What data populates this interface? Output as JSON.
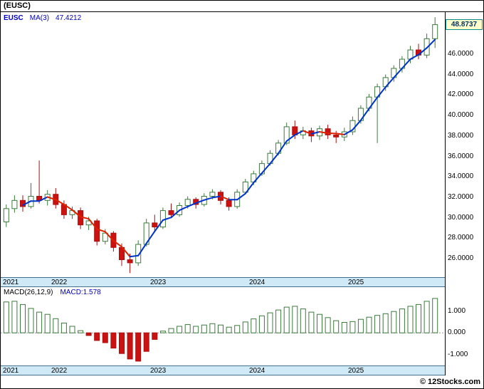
{
  "window": {
    "title": "(EUSC)"
  },
  "watermark": "© 12Stocks.com",
  "colors": {
    "up_fill": "#ffffff",
    "up_border": "#3d7a3d",
    "down_fill": "#cc1111",
    "down_border": "#aa0f0f",
    "ma_up": "#0033cc",
    "ma_down": "#dd2200",
    "strip_bg": "#cfe9f7",
    "strip_border": "#44708c",
    "last_price_bg": "#ffffcc",
    "last_price_border": "#0c8c8c",
    "last_price_text": "#003366",
    "legend_text": "#0000c8"
  },
  "main_chart": {
    "legend": {
      "symbol": "EUSC",
      "ma_label": "MA(3)",
      "ma_value": "47.4212"
    },
    "last_price": "48.8737",
    "y_ticks": [
      "46.0000",
      "44.0000",
      "42.0000",
      "40.0000",
      "38.0000",
      "36.0000",
      "34.0000",
      "32.0000",
      "30.0000",
      "28.0000",
      "26.0000"
    ],
    "x_ticks": [
      "2021",
      "2022",
      "2023",
      "2024",
      "2025"
    ]
  },
  "macd_panel": {
    "label": "MACD(26,12,9)",
    "value_label": "MACD:1.578",
    "y_ticks": [
      "1.000",
      "0.000",
      "-1.000"
    ],
    "x_ticks": [
      "2021",
      "2022",
      "2023",
      "2024",
      "2025"
    ]
  },
  "chart_data": [
    {
      "type": "candlestick",
      "title": "(EUSC) monthly price with MA(3) overlay",
      "x": [
        "2021-07",
        "2021-08",
        "2021-09",
        "2021-10",
        "2021-11",
        "2021-12",
        "2022-01",
        "2022-02",
        "2022-03",
        "2022-04",
        "2022-05",
        "2022-06",
        "2022-07",
        "2022-08",
        "2022-09",
        "2022-10",
        "2022-11",
        "2022-12",
        "2023-01",
        "2023-02",
        "2023-03",
        "2023-04",
        "2023-05",
        "2023-06",
        "2023-07",
        "2023-08",
        "2023-09",
        "2023-10",
        "2023-11",
        "2023-12",
        "2024-01",
        "2024-02",
        "2024-03",
        "2024-04",
        "2024-05",
        "2024-06",
        "2024-07",
        "2024-08",
        "2024-09",
        "2024-10",
        "2024-11",
        "2024-12",
        "2025-01",
        "2025-02",
        "2025-03",
        "2025-04",
        "2025-05",
        "2025-06",
        "2025-07",
        "2025-08",
        "2025-09",
        "2025-10",
        "2025-11"
      ],
      "ohlc": [
        [
          29.6,
          31.3,
          29.1,
          30.9
        ],
        [
          30.9,
          32.2,
          30.5,
          31.7
        ],
        [
          31.7,
          32.2,
          30.6,
          31.1
        ],
        [
          31.1,
          33.4,
          30.9,
          32.1
        ],
        [
          32.1,
          35.6,
          31.4,
          31.7
        ],
        [
          31.7,
          32.7,
          31.2,
          32.3
        ],
        [
          32.3,
          32.9,
          30.9,
          31.3
        ],
        [
          31.3,
          31.7,
          29.9,
          30.3
        ],
        [
          30.3,
          31.1,
          29.9,
          30.7
        ],
        [
          30.7,
          31.0,
          28.9,
          29.3
        ],
        [
          29.3,
          30.1,
          28.8,
          29.7
        ],
        [
          29.7,
          29.9,
          27.3,
          27.7
        ],
        [
          27.7,
          28.9,
          27.4,
          28.5
        ],
        [
          28.5,
          28.7,
          26.7,
          27.1
        ],
        [
          27.1,
          27.5,
          25.3,
          25.9
        ],
        [
          25.9,
          26.5,
          24.6,
          25.6
        ],
        [
          25.6,
          27.8,
          25.3,
          27.4
        ],
        [
          27.4,
          29.9,
          27.2,
          29.5
        ],
        [
          29.5,
          30.3,
          28.6,
          29.1
        ],
        [
          29.1,
          31.0,
          28.9,
          30.7
        ],
        [
          30.7,
          31.4,
          30.0,
          30.3
        ],
        [
          30.3,
          31.5,
          30.1,
          31.2
        ],
        [
          31.2,
          32.1,
          30.9,
          31.8
        ],
        [
          31.8,
          32.0,
          30.9,
          31.3
        ],
        [
          31.3,
          32.4,
          31.1,
          32.1
        ],
        [
          32.1,
          32.8,
          31.8,
          32.5
        ],
        [
          32.5,
          32.7,
          31.3,
          31.7
        ],
        [
          31.7,
          32.0,
          30.7,
          31.1
        ],
        [
          31.1,
          32.8,
          30.9,
          32.5
        ],
        [
          32.5,
          33.8,
          32.3,
          33.5
        ],
        [
          33.5,
          34.6,
          33.2,
          34.3
        ],
        [
          34.3,
          35.6,
          34.1,
          35.3
        ],
        [
          35.3,
          36.6,
          35.1,
          36.3
        ],
        [
          36.3,
          37.6,
          36.1,
          37.3
        ],
        [
          37.3,
          39.3,
          37.1,
          38.9
        ],
        [
          38.9,
          39.5,
          37.7,
          38.1
        ],
        [
          38.1,
          38.9,
          37.7,
          38.5
        ],
        [
          38.5,
          38.8,
          37.4,
          38.0
        ],
        [
          38.0,
          39.0,
          37.6,
          38.7
        ],
        [
          38.7,
          39.1,
          37.7,
          38.1
        ],
        [
          38.1,
          38.5,
          37.3,
          37.9
        ],
        [
          37.9,
          38.8,
          37.5,
          38.4
        ],
        [
          38.4,
          39.9,
          38.1,
          39.5
        ],
        [
          39.5,
          41.0,
          39.2,
          40.7
        ],
        [
          40.7,
          42.1,
          40.4,
          41.8
        ],
        [
          41.8,
          43.1,
          37.3,
          42.8
        ],
        [
          42.8,
          44.0,
          42.4,
          43.7
        ],
        [
          43.7,
          44.9,
          43.3,
          44.6
        ],
        [
          44.6,
          45.8,
          44.2,
          45.5
        ],
        [
          45.5,
          46.8,
          45.1,
          46.4
        ],
        [
          46.4,
          47.0,
          45.5,
          45.9
        ],
        [
          45.9,
          48.0,
          45.6,
          47.5
        ],
        [
          47.5,
          49.6,
          46.6,
          48.8737
        ]
      ],
      "ma_period": 3,
      "ma_last": 47.4212,
      "last_price": 48.8737,
      "ylim": [
        24.2,
        50.1
      ],
      "y_ticks": [
        46,
        44,
        42,
        40,
        38,
        36,
        34,
        32,
        30,
        28,
        26
      ],
      "year_start_bars": [
        0,
        6,
        18,
        30,
        42
      ],
      "grid": false,
      "legend_position": "top-left"
    },
    {
      "type": "bar",
      "title": "MACD(26,12,9)",
      "x_ref": 0,
      "values": [
        1.42,
        1.45,
        1.3,
        1.12,
        0.95,
        0.85,
        0.65,
        0.45,
        0.3,
        0.1,
        -0.12,
        -0.35,
        -0.45,
        -0.7,
        -0.95,
        -1.2,
        -1.3,
        -0.85,
        -0.3,
        0.08,
        0.2,
        0.3,
        0.38,
        0.3,
        0.36,
        0.42,
        0.36,
        0.26,
        0.34,
        0.5,
        0.64,
        0.78,
        0.92,
        1.05,
        1.18,
        1.22,
        1.1,
        0.95,
        0.85,
        0.7,
        0.56,
        0.48,
        0.52,
        0.62,
        0.72,
        0.8,
        0.88,
        0.98,
        1.1,
        1.22,
        1.3,
        1.45,
        1.578
      ],
      "last": 1.578,
      "ylim": [
        -1.5,
        2.1
      ],
      "y_ticks": [
        1,
        0,
        -1
      ],
      "year_start_bars": [
        0,
        6,
        18,
        30,
        42
      ],
      "grid": false
    }
  ]
}
